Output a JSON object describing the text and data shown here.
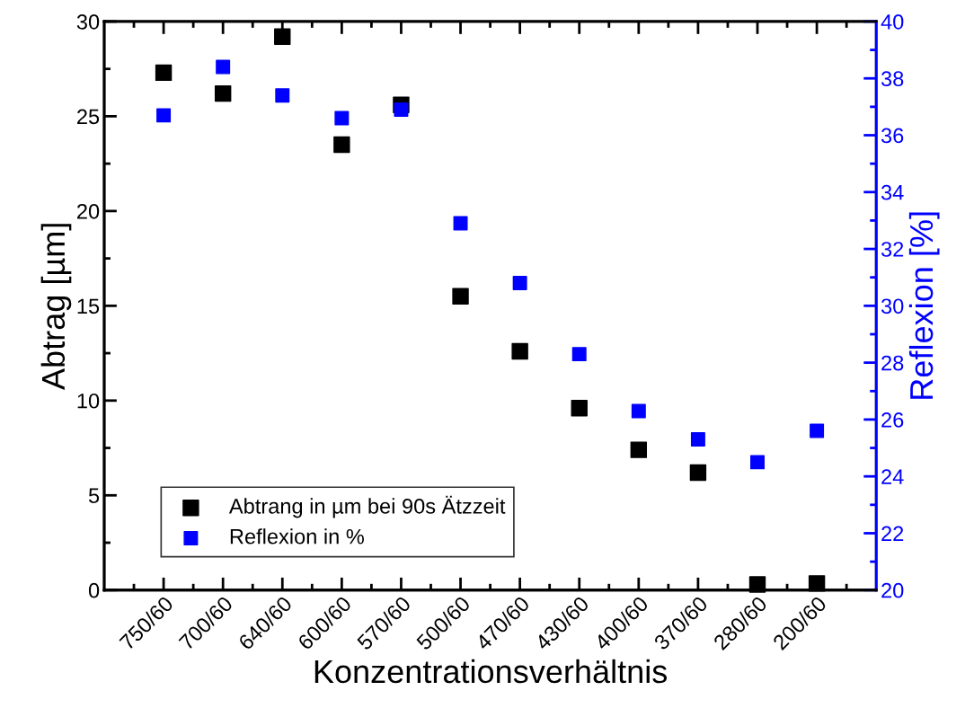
{
  "chart_data": {
    "type": "scatter",
    "xlabel": "Konzentrationsverhältnis",
    "ylabel": "Abtrag [µm]",
    "y2label": "Reflexion [%]",
    "categories": [
      "750/60",
      "700/60",
      "640/60",
      "600/60",
      "570/60",
      "500/60",
      "470/60",
      "430/60",
      "400/60",
      "370/60",
      "280/60",
      "200/60"
    ],
    "series": [
      {
        "name": "Abtrang in µm bei 90s Ätzzeit",
        "color": "#000000",
        "values": [
          27.3,
          26.2,
          29.2,
          23.5,
          25.6,
          15.5,
          12.6,
          9.6,
          7.4,
          6.2,
          0.3,
          0.35
        ]
      },
      {
        "name": "Reflexion in %",
        "color": "#0000ff",
        "axis": "y2",
        "values": [
          36.7,
          38.4,
          37.4,
          36.6,
          36.9,
          32.9,
          30.8,
          28.3,
          26.3,
          25.3,
          24.5,
          25.6
        ]
      }
    ],
    "ylim": [
      0,
      30
    ],
    "yticks": [
      0,
      5,
      10,
      15,
      20,
      25,
      30
    ],
    "y2lim": [
      20,
      40
    ],
    "y2ticks": [
      20,
      22,
      24,
      26,
      28,
      30,
      32,
      34,
      36,
      38,
      40
    ],
    "marker": "square",
    "legend": "bottom left",
    "grid": false
  }
}
